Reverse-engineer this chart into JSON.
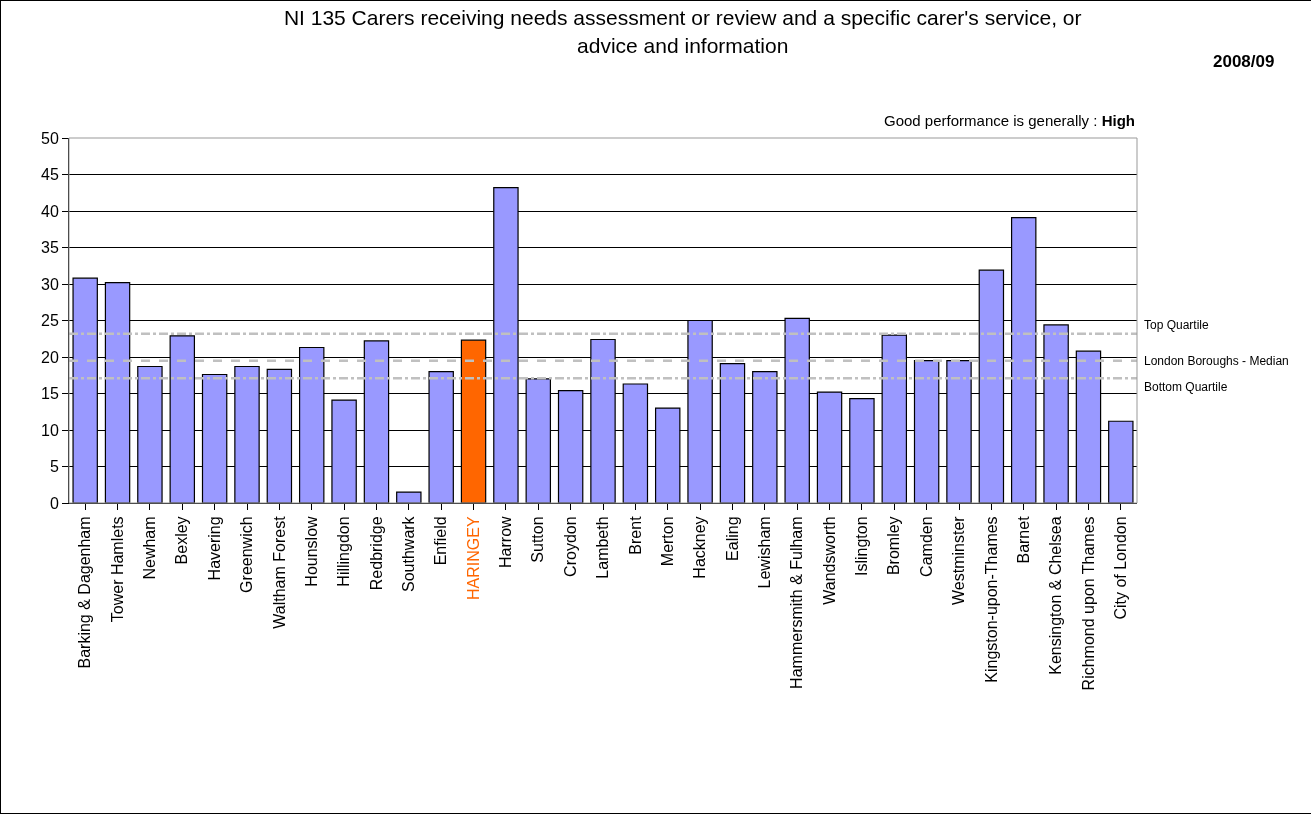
{
  "chart_data": {
    "type": "bar",
    "title": "NI 135 Carers receiving needs assessment or review and a specific carer's service, or advice and information",
    "categories": [
      "Barking & Dagenham",
      "Tower Hamlets",
      "Newham",
      "Bexley",
      "Havering",
      "Greenwich",
      "Waltham Forest",
      "Hounslow",
      "Hillingdon",
      "Redbridge",
      "Southwark",
      "Enfield",
      "HARINGEY",
      "Harrow",
      "Sutton",
      "Croydon",
      "Lambeth",
      "Brent",
      "Merton",
      "Hackney",
      "Ealing",
      "Lewisham",
      "Hammersmith & Fulham",
      "Wandsworth",
      "Islington",
      "Bromley",
      "Camden",
      "Westminster",
      "Kingston-upon-Thames",
      "Barnet",
      "Kensington & Chelsea",
      "Richmond upon Thames",
      "City of London"
    ],
    "values": [
      30.8,
      30.2,
      18.7,
      22.9,
      17.6,
      18.7,
      18.3,
      21.3,
      14.1,
      22.2,
      1.5,
      18.0,
      22.3,
      43.2,
      17.0,
      15.4,
      22.4,
      16.3,
      13.0,
      25.0,
      19.1,
      18.0,
      25.3,
      15.2,
      14.3,
      23.0,
      19.5,
      19.5,
      31.9,
      39.1,
      24.4,
      20.8,
      11.2
    ],
    "colors": [
      "#9999ff",
      "#9999ff",
      "#9999ff",
      "#9999ff",
      "#9999ff",
      "#9999ff",
      "#9999ff",
      "#9999ff",
      "#9999ff",
      "#9999ff",
      "#9999ff",
      "#9999ff",
      "#ff6600",
      "#9999ff",
      "#9999ff",
      "#9999ff",
      "#9999ff",
      "#9999ff",
      "#9999ff",
      "#9999ff",
      "#9999ff",
      "#9999ff",
      "#9999ff",
      "#9999ff",
      "#9999ff",
      "#9999ff",
      "#9999ff",
      "#9999ff",
      "#9999ff",
      "#9999ff",
      "#9999ff",
      "#9999ff",
      "#9999ff"
    ],
    "ylim": [
      0,
      50
    ],
    "yticks": [
      0,
      5,
      10,
      15,
      20,
      25,
      30,
      35,
      40,
      45,
      50
    ],
    "grid": "y",
    "ref_lines": [
      {
        "axis": "y",
        "value": 23.2,
        "label": "Top Quartile",
        "color": "#c0c0c0",
        "line_style": "dashdot"
      },
      {
        "axis": "y",
        "value": 19.5,
        "label": "London Boroughs - Median",
        "color": "#c0c0c0",
        "line_style": "dashed"
      },
      {
        "axis": "y",
        "value": 17.1,
        "label": "Bottom Quartile",
        "color": "#c0c0c0",
        "line_style": "dashdot"
      }
    ],
    "annotations": [
      "2008/09",
      "Good performance is generally : High"
    ]
  }
}
